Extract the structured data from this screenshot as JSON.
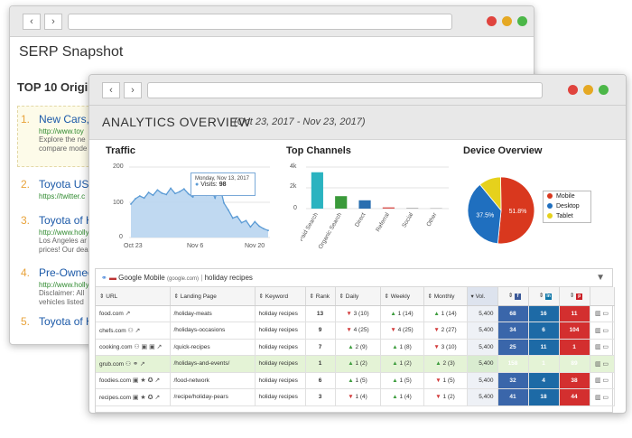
{
  "serp": {
    "title": "SERP Snapshot",
    "top10": "TOP 10 Origin",
    "items": [
      {
        "num": "1.",
        "title": "New Cars,",
        "url": "http://www.toy",
        "desc": [
          "Explore the ne",
          "compare mode"
        ]
      },
      {
        "num": "2.",
        "title": "Toyota US",
        "url": "https://twitter.c",
        "desc": []
      },
      {
        "num": "3.",
        "title": "Toyota of H",
        "url": "http://www.holly",
        "desc": [
          "Los Angeles ar",
          "prices! Our dea"
        ]
      },
      {
        "num": "4.",
        "title": "Pre-Owned",
        "url": "http://www.holly",
        "desc": [
          "Disclaimer: All",
          "vehicles listed"
        ]
      },
      {
        "num": "5.",
        "title": "Toyota of H",
        "url": "",
        "desc": []
      }
    ]
  },
  "overview": {
    "title": "ANALYTICS OVERVIEW",
    "range": "(Oct 23, 2017  -  Nov 23, 2017)"
  },
  "traffic": {
    "title": "Traffic",
    "y_ticks": [
      "200",
      "100",
      "0"
    ],
    "x_ticks": [
      "Oct 23",
      "Nov 6",
      "Nov 20"
    ],
    "tooltip_date": "Monday, Nov 13, 2017",
    "tooltip_label": "Visits:",
    "tooltip_value": "98"
  },
  "channels": {
    "title": "Top Channels",
    "y_ticks": [
      "4k",
      "2k",
      "0"
    ]
  },
  "device": {
    "title": "Device Overview",
    "legend": [
      "Mobile",
      "Desktop",
      "Tablet"
    ]
  },
  "chart_data": [
    {
      "type": "area",
      "title": "Traffic",
      "x": [
        "Oct 23",
        "Oct 24",
        "Oct 25",
        "Oct 26",
        "Oct 27",
        "Oct 28",
        "Oct 29",
        "Oct 30",
        "Oct 31",
        "Nov 1",
        "Nov 2",
        "Nov 3",
        "Nov 4",
        "Nov 5",
        "Nov 6",
        "Nov 7",
        "Nov 8",
        "Nov 9",
        "Nov 10",
        "Nov 11",
        "Nov 12",
        "Nov 13",
        "Nov 14",
        "Nov 15",
        "Nov 16",
        "Nov 17",
        "Nov 18",
        "Nov 19",
        "Nov 20",
        "Nov 21",
        "Nov 22",
        "Nov 23"
      ],
      "values": [
        95,
        110,
        118,
        112,
        128,
        120,
        135,
        126,
        122,
        140,
        125,
        130,
        138,
        124,
        115,
        142,
        130,
        120,
        138,
        112,
        150,
        98,
        78,
        55,
        60,
        42,
        48,
        30,
        45,
        32,
        25,
        20
      ],
      "ylim": [
        0,
        200
      ],
      "color": "#5b9bd5"
    },
    {
      "type": "bar",
      "title": "Top Channels",
      "categories": [
        "Paid Search",
        "Organic Search",
        "Direct",
        "Referral",
        "Social",
        "Other"
      ],
      "values": [
        3500,
        1200,
        800,
        120,
        60,
        40
      ],
      "colors": [
        "#2bb3c0",
        "#3a9a3a",
        "#2a6fb0",
        "#d9534f",
        "#999999",
        "#999999"
      ],
      "ylim": [
        0,
        4000
      ]
    },
    {
      "type": "pie",
      "title": "Device Overview",
      "categories": [
        "Mobile",
        "Desktop",
        "Tablet"
      ],
      "values": [
        51.8,
        37.5,
        10.7
      ],
      "labels": [
        "51.8%",
        "37.5%",
        ""
      ],
      "colors": [
        "#d9381e",
        "#1f6fbf",
        "#e6d11c"
      ]
    }
  ],
  "table": {
    "source": "Google Mobile",
    "source_domain": "(google.com)",
    "keyword_filter": "holiday recipes",
    "headers": [
      "URL",
      "Landing Page",
      "Keyword",
      "Rank",
      "Daily",
      "Weekly",
      "Monthly",
      "Vol.",
      "",
      "",
      "",
      ""
    ],
    "rows": [
      {
        "url": "food.com",
        "icons": "",
        "landing": "/holiday-meats",
        "keyword": "holiday recipes",
        "rank": "13",
        "daily": "3 (10)",
        "daily_dir": "down",
        "weekly": "1 (14)",
        "weekly_dir": "up",
        "monthly": "1 (14)",
        "monthly_dir": "up",
        "vol": "5,400",
        "fb": "68",
        "li": "16",
        "pi": "11"
      },
      {
        "url": "chefs.com",
        "icons": "⚇",
        "landing": "/holidays-occasions",
        "keyword": "holiday recipes",
        "rank": "9",
        "daily": "4 (25)",
        "daily_dir": "down",
        "weekly": "4 (25)",
        "weekly_dir": "down",
        "monthly": "2 (27)",
        "monthly_dir": "down",
        "vol": "5,400",
        "fb": "34",
        "li": "6",
        "pi": "104"
      },
      {
        "url": "cooking.com",
        "icons": "⚇ ▣ ▣",
        "landing": "/quick-recipes",
        "keyword": "holiday recipes",
        "rank": "7",
        "daily": "2 (9)",
        "daily_dir": "up",
        "weekly": "1 (8)",
        "weekly_dir": "up",
        "monthly": "3 (10)",
        "monthly_dir": "down",
        "vol": "5,400",
        "fb": "25",
        "li": "11",
        "pi": "1"
      },
      {
        "url": "grub.com",
        "icons": "⚇ ⚭",
        "landing": "/holidays-and-events/",
        "keyword": "holiday recipes",
        "rank": "1",
        "daily": "1 (2)",
        "daily_dir": "up",
        "weekly": "1 (2)",
        "weekly_dir": "up",
        "monthly": "2 (3)",
        "monthly_dir": "up",
        "vol": "5,400",
        "fb": "158",
        "li": "1",
        "pi": "89"
      },
      {
        "url": "foodies.com",
        "icons": "▣ ★ ✪",
        "landing": "/food-network",
        "keyword": "holiday recipes",
        "rank": "6",
        "daily": "1 (5)",
        "daily_dir": "up",
        "weekly": "1 (5)",
        "weekly_dir": "up",
        "monthly": "1 (5)",
        "monthly_dir": "down",
        "vol": "5,400",
        "fb": "32",
        "li": "4",
        "pi": "38"
      },
      {
        "url": "recipes.com",
        "icons": "▣ ★ ✪",
        "landing": "/recipe/holiday-pears",
        "keyword": "holiday recipes",
        "rank": "3",
        "daily": "1 (4)",
        "daily_dir": "down",
        "weekly": "1 (4)",
        "weekly_dir": "up",
        "monthly": "1 (2)",
        "monthly_dir": "down",
        "vol": "5,400",
        "fb": "41",
        "li": "18",
        "pi": "44"
      }
    ]
  }
}
